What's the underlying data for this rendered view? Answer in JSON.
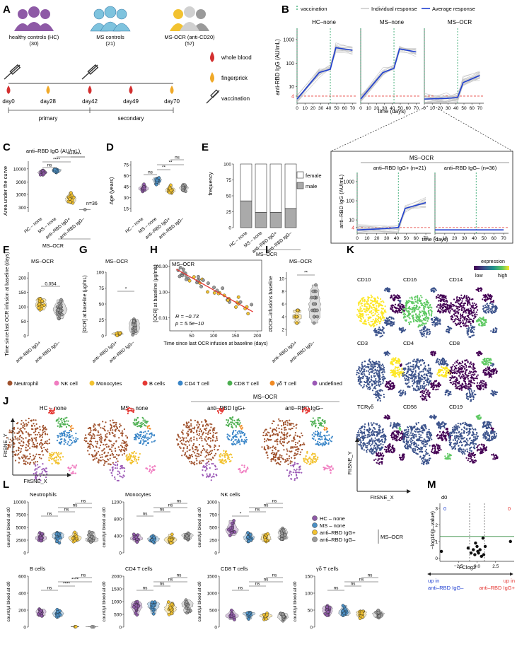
{
  "colors": {
    "hc": "#8e5aa6",
    "ms": "#4b8fc4",
    "pos": "#f2c230",
    "neg": "#9a9a9a",
    "neutrophil": "#a0522d",
    "nk": "#f07cc0",
    "mono": "#f2c230",
    "bcell": "#e53935",
    "cd4": "#3a86c8",
    "cd8": "#4caf50",
    "gd": "#f08a24",
    "undef": "#9b59b6",
    "avg": "#1f3fd1",
    "vacc": "#20a060",
    "red": "#e53935"
  },
  "panel_labels": [
    "A",
    "B",
    "C",
    "D",
    "E",
    "F",
    "G",
    "H",
    "I",
    "J",
    "K",
    "L",
    "M"
  ],
  "A": {
    "groups": [
      {
        "name": "healthy controls (HC)",
        "n": "(30)"
      },
      {
        "name": "MS controls",
        "n": "(21)"
      },
      {
        "name": "MS-OCR (anti-CD20)",
        "n": "(57)"
      }
    ],
    "days": [
      "day0",
      "day28",
      "day42",
      "day49",
      "day70"
    ],
    "legend": [
      "whole blood",
      "fingerprick",
      "vaccination"
    ],
    "phases": [
      "primary",
      "secondary"
    ]
  },
  "B": {
    "legend": [
      "vaccination",
      "Individual response",
      "Average response"
    ],
    "ylabel": "anti-RBD IgG (AU/mL)",
    "xlabel": "time (days)",
    "facets": [
      "HC–none",
      "MS–none",
      "MS–OCR"
    ],
    "yticks": [
      "1000",
      "100",
      "10",
      "4"
    ],
    "xticks": [
      "0",
      "10",
      "20",
      "30",
      "40",
      "50",
      "60",
      "70"
    ]
  },
  "Binset": {
    "title": "MS–OCR",
    "facets": [
      "anti–RBD IgG+ (n=21)",
      "anti–RBD IgG– (n=36)"
    ],
    "ylabel": "anti–RBD IgG (AU/mL)",
    "xlabel": "time (days)",
    "yticks": [
      "1000",
      "100",
      "10",
      "4"
    ],
    "xticks": [
      "0",
      "10",
      "20",
      "30",
      "40",
      "50",
      "60",
      "70"
    ]
  },
  "C": {
    "title": "anti–RBD IgG (AU/mL)",
    "ylabel": "Area under the curve",
    "yticks": [
      "10000",
      "3000",
      "1000",
      "300"
    ],
    "cats": [
      "HC – none",
      "MS – none",
      "anti–RBD IgG+",
      "anti–RBD IgG–"
    ],
    "group_label": "MS–OCR",
    "sig": [
      "ns",
      "****",
      "****",
      "****"
    ],
    "note": "n=36"
  },
  "D": {
    "ylabel": "Age (years)",
    "yticks": [
      "75",
      "60",
      "45",
      "30",
      "15"
    ],
    "cats": [
      "HC – none",
      "MS – none",
      "anti–RBD IgG+",
      "anti–RBD IgG–"
    ],
    "sig": [
      "ns",
      "**",
      "**",
      "ns"
    ],
    "group_label": "MS–OCR"
  },
  "E": {
    "ylabel": "frequency",
    "yticks": [
      "100",
      "75",
      "50",
      "25",
      "0"
    ],
    "cats": [
      "HC – none",
      "MS – none",
      "anti–RBD IgG+",
      "anti–RBD IgG–"
    ],
    "legend": [
      "female",
      "male"
    ],
    "group_label": "MS–OCR"
  },
  "F": {
    "title": "MS–OCR",
    "ylabel": "Time since last OCR infusion at baseline (days)",
    "yticks": [
      "200",
      "150",
      "100",
      "50",
      "0"
    ],
    "cats": [
      "anti–RBD IgG+",
      "anti–RBD IgG–"
    ],
    "pval": "0.054"
  },
  "G": {
    "title": "MS–OCR",
    "ylabel": "[OCR] at baseline (μg/mL)",
    "yticks": [
      "100",
      "75",
      "50",
      "25",
      "0"
    ],
    "cats": [
      "anti–RBD IgG+",
      "anti–RBD IgG–"
    ],
    "sig": "*"
  },
  "H": {
    "title": "MS–OCR",
    "ylabel": "[OCR] at baseline (μg/mL)",
    "xlabel": "Time since last OCR infusion at baseline (days)",
    "yticks": [
      "100.00",
      "1.00",
      "0.01"
    ],
    "xticks": [
      "50",
      "100",
      "150",
      "200"
    ],
    "r": "R = −0.73",
    "p": "p = 5.5e−10"
  },
  "I": {
    "title": "MS–OCR",
    "ylabel": "#OCR–infusions baseline",
    "yticks": [
      "10",
      "8",
      "6",
      "4",
      "2"
    ],
    "cats": [
      "anti–RBD IgG+",
      "anti–RBD IgG–"
    ],
    "sig": "**"
  },
  "J": {
    "legend": [
      "Neutrophil",
      "NK cell",
      "Monocytes",
      "B cells",
      "CD4 T cell",
      "CD8 T cell",
      "γδ T cell",
      "undefined"
    ],
    "facets": [
      "HC – none",
      "MS – none",
      "anti–RBD IgG+",
      "anti–RBD IgG–"
    ],
    "group_label": "MS–OCR",
    "xlabel": "FItSNE_X",
    "ylabel": "FItSNE_Y"
  },
  "K": {
    "legend_title": "expression",
    "legend_low": "low",
    "legend_high": "high",
    "markers": [
      "CD10",
      "CD16",
      "CD14",
      "CD3",
      "CD4",
      "CD8",
      "TCRγδ",
      "CD56",
      "CD19"
    ],
    "xlabel": "FItSNE_X",
    "ylabel": "FItSNE_Y"
  },
  "L": {
    "ylabel": "count/μl blood at d0",
    "panels": [
      {
        "title": "Neutrophils",
        "yticks": [
          "10000",
          "7500",
          "5000",
          "2500",
          "0"
        ]
      },
      {
        "title": "Monocytes",
        "yticks": [
          "1200",
          "800",
          "400",
          "0"
        ]
      },
      {
        "title": "NK cells",
        "yticks": [
          "1000",
          "750",
          "500",
          "250",
          "0"
        ]
      },
      {
        "title": "B cells",
        "yticks": [
          "600",
          "400",
          "200",
          "0"
        ]
      },
      {
        "title": "CD4 T cells",
        "yticks": [
          "2000",
          "1500",
          "1000",
          "500",
          "0"
        ]
      },
      {
        "title": "CD8 T cells",
        "yticks": [
          "1500",
          "1000",
          "500",
          "0"
        ]
      },
      {
        "title": "γδ T cells",
        "yticks": [
          "150",
          "100",
          "50",
          "0"
        ]
      }
    ],
    "legend": [
      "HC – none",
      "MS – none",
      "anti–RBD IgG+",
      "anti–RBD IgG–"
    ],
    "legend_group": "MS–OCR"
  },
  "M": {
    "title": "d0",
    "ylabel": "−log10(p–value)",
    "xlabel": "FClog2",
    "xticks": [
      "−2.5",
      "0.0",
      "2.5"
    ],
    "yticks": [
      "3",
      "2",
      "1",
      "0"
    ],
    "count_left": "0",
    "count_right": "0",
    "left_up": "up in",
    "left_group": "anti–RBD IgG–",
    "right_up": "up in",
    "right_group": "anti–RBD IgG+"
  }
}
